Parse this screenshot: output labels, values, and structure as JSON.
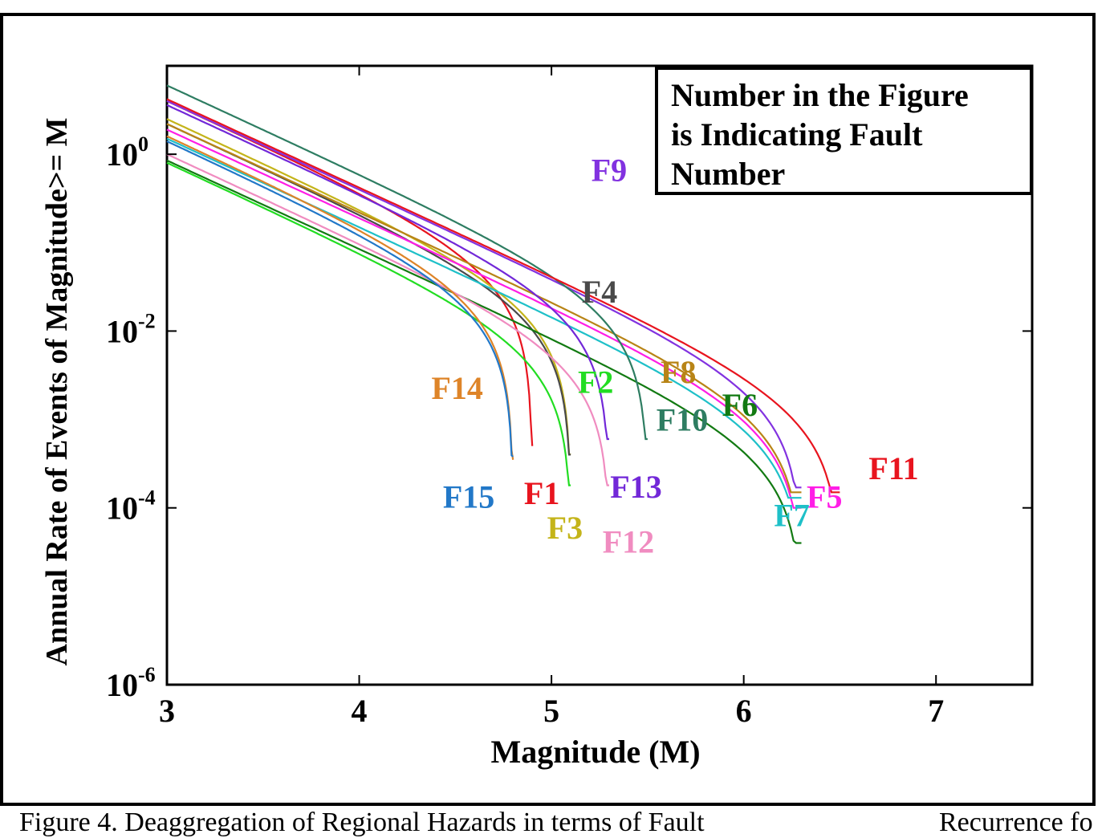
{
  "chart_data": {
    "type": "line",
    "xlabel": "Magnitude (M)",
    "ylabel": "Annual Rate of Events of Magnitude>= M",
    "xlim": [
      3,
      7.5
    ],
    "ylim": [
      1e-06,
      10
    ],
    "y_scale": "log",
    "x_ticks": [
      "3",
      "4",
      "5",
      "6",
      "7"
    ],
    "y_ticks": [
      {
        "base": "10",
        "exp": "0",
        "value": 1
      },
      {
        "base": "10",
        "exp": "-2",
        "value": 0.01
      },
      {
        "base": "10",
        "exp": "-4",
        "value": 0.0001
      },
      {
        "base": "10",
        "exp": "-6",
        "value": 1e-06
      }
    ],
    "legend_box": [
      "Number in the Figure",
      "is Indicating Fault",
      "Number"
    ],
    "legend_placement": "top-right",
    "grid": false,
    "series": [
      {
        "name": "F1",
        "color": "#e8141e",
        "r0": 4.0,
        "mmax": 4.9,
        "rmin": 0.0005,
        "label_x": 4.95,
        "label_y": 0.00011
      },
      {
        "name": "F2",
        "color": "#22dd22",
        "r0": 0.8,
        "mmax": 5.1,
        "rmin": 0.00018,
        "label_x": 5.23,
        "label_y": 0.002
      },
      {
        "name": "F3",
        "color": "#c4b41a",
        "r0": 2.5,
        "mmax": 5.1,
        "rmin": 0.0004,
        "label_x": 5.07,
        "label_y": 4.5e-05
      },
      {
        "name": "F4",
        "color": "#4a4a4a",
        "r0": 2.2,
        "mmax": 5.1,
        "rmin": 0.0004,
        "label_x": 5.25,
        "label_y": 0.021
      },
      {
        "name": "F5",
        "color": "#ff1ee6",
        "r0": 1.9,
        "mmax": 6.3,
        "rmin": 0.0001,
        "label_x": 6.42,
        "label_y": 0.0001
      },
      {
        "name": "F6",
        "color": "#127a12",
        "r0": 0.85,
        "mmax": 6.3,
        "rmin": 4e-05,
        "label_x": 5.98,
        "label_y": 0.0011
      },
      {
        "name": "F7",
        "color": "#1ec0c8",
        "r0": 1.5,
        "mmax": 6.3,
        "rmin": 0.00013,
        "label_x": 6.25,
        "label_y": 6.2e-05
      },
      {
        "name": "F8",
        "color": "#b88416",
        "r0": 2.2,
        "mmax": 6.3,
        "rmin": 0.00015,
        "label_x": 5.66,
        "label_y": 0.0026
      },
      {
        "name": "F9",
        "color": "#8232e0",
        "r0": 4.0,
        "mmax": 6.3,
        "rmin": 0.00017,
        "label_x": 5.3,
        "label_y": 0.5
      },
      {
        "name": "F10",
        "color": "#2e7d62",
        "r0": 6.0,
        "mmax": 5.5,
        "rmin": 0.0006,
        "label_x": 5.68,
        "label_y": 0.00075
      },
      {
        "name": "F11",
        "color": "#e8141e",
        "r0": 4.2,
        "mmax": 6.5,
        "rmin": 0.00015,
        "label_x": 6.78,
        "label_y": 0.00021
      },
      {
        "name": "F12",
        "color": "#f08cc0",
        "r0": 1.0,
        "mmax": 5.3,
        "rmin": 0.00018,
        "label_x": 5.4,
        "label_y": 3.1e-05
      },
      {
        "name": "F13",
        "color": "#7228d8",
        "r0": 3.6,
        "mmax": 5.3,
        "rmin": 0.0006,
        "label_x": 5.44,
        "label_y": 0.00013
      },
      {
        "name": "F14",
        "color": "#de8428",
        "r0": 1.6,
        "mmax": 4.8,
        "rmin": 0.00035,
        "label_x": 4.51,
        "label_y": 0.0017
      },
      {
        "name": "F15",
        "color": "#2278c8",
        "r0": 1.4,
        "mmax": 4.8,
        "rmin": 0.00038,
        "label_x": 4.57,
        "label_y": 0.0001
      }
    ]
  },
  "caption": {
    "part1": "Figure 4. Deaggregation of Regional Hazards in terms of Fault",
    "part2": "Recurrence fo"
  }
}
